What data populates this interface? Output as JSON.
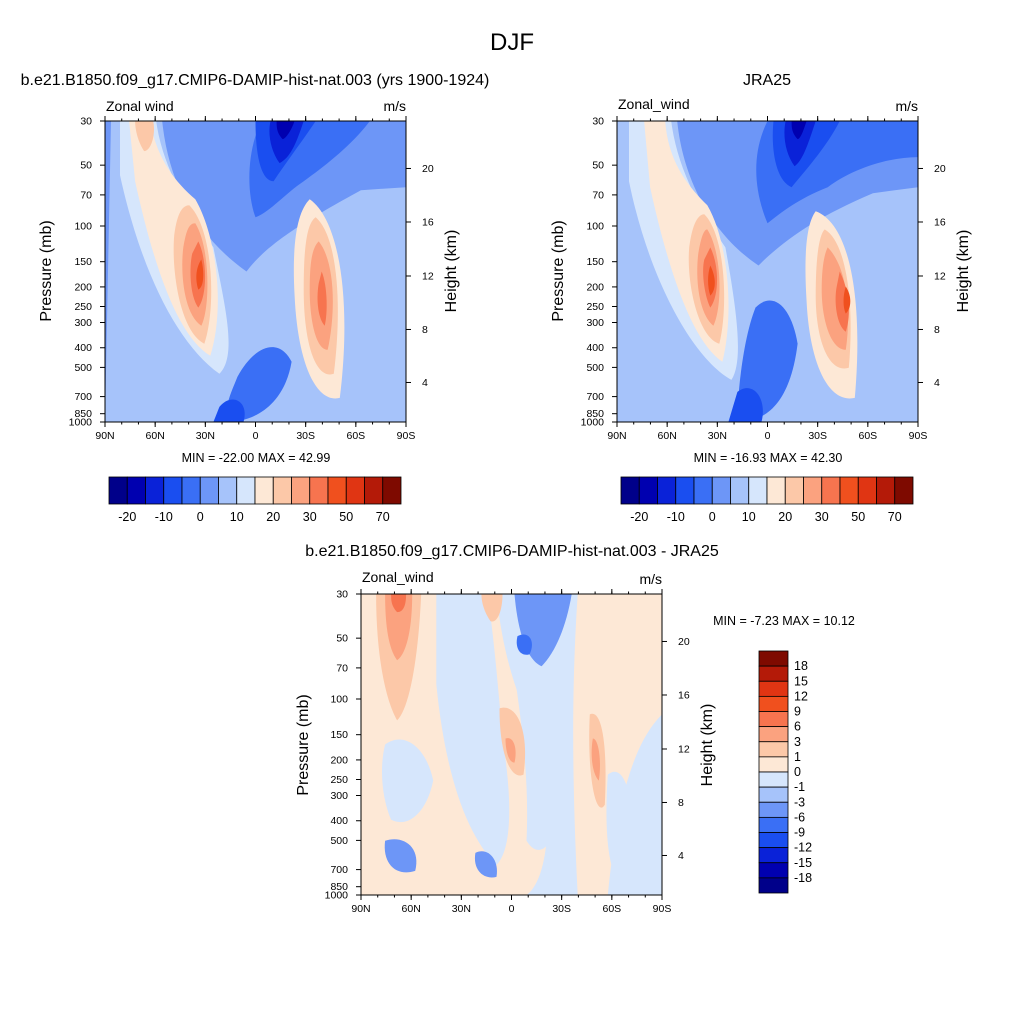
{
  "figure": {
    "title": "DJF"
  },
  "colors": {
    "diverging_ramp": [
      "#00008a",
      "#0000b0",
      "#0a22d8",
      "#1a4ef0",
      "#3a6ff5",
      "#6d96f7",
      "#a6c3fa",
      "#d6e6fc",
      "#fde8d6",
      "#fcc8a8",
      "#fba27f",
      "#f7744f",
      "#f0501e",
      "#e03513",
      "#b41a08",
      "#7e0a00"
    ]
  },
  "chart_data": [
    {
      "type": "heatmap",
      "title": "b.e21.B1850.f09_g17.CMIP6-DAMIP-hist-nat.003 (yrs 1900-1924)",
      "subtitle_left": "Zonal wind",
      "subtitle_right": "m/s",
      "xlabel": "",
      "ylabel": "Pressure (mb)",
      "y2label": "Height (km)",
      "x_ticks": [
        "90N",
        "60N",
        "30N",
        "0",
        "30S",
        "60S",
        "90S"
      ],
      "x_range": [
        90,
        -90
      ],
      "y_ticks": [
        "30",
        "50",
        "70",
        "100",
        "150",
        "200",
        "250",
        "300",
        "400",
        "500",
        "700",
        "850",
        "1000"
      ],
      "y_range_mb": [
        1000,
        30
      ],
      "y_scale": "log",
      "y2_ticks": [
        "4",
        "8",
        "12",
        "16",
        "20"
      ],
      "stats": "MIN = -22.00  MAX =  42.99",
      "min": -22.0,
      "max": 42.99,
      "colorbar": {
        "orientation": "horizontal",
        "levels": [
          -25,
          -20,
          -15,
          -10,
          -5,
          0,
          5,
          10,
          15,
          20,
          25,
          30,
          40,
          50,
          60,
          70
        ],
        "tick_labels": [
          "-20",
          "-10",
          "0",
          "10",
          "20",
          "30",
          "50",
          "70"
        ]
      }
    },
    {
      "type": "heatmap",
      "title": "JRA25",
      "subtitle_left": "Zonal_wind",
      "subtitle_right": "m/s",
      "xlabel": "",
      "ylabel": "Pressure (mb)",
      "y2label": "Height (km)",
      "x_ticks": [
        "90N",
        "60N",
        "30N",
        "0",
        "30S",
        "60S",
        "90S"
      ],
      "x_range": [
        90,
        -90
      ],
      "y_ticks": [
        "30",
        "50",
        "70",
        "100",
        "150",
        "200",
        "250",
        "300",
        "400",
        "500",
        "700",
        "850",
        "1000"
      ],
      "y_range_mb": [
        1000,
        30
      ],
      "y_scale": "log",
      "y2_ticks": [
        "4",
        "8",
        "12",
        "16",
        "20"
      ],
      "stats": "MIN = -16.93  MAX =  42.30",
      "min": -16.93,
      "max": 42.3,
      "colorbar": {
        "orientation": "horizontal",
        "levels": [
          -25,
          -20,
          -15,
          -10,
          -5,
          0,
          5,
          10,
          15,
          20,
          25,
          30,
          40,
          50,
          60,
          70
        ],
        "tick_labels": [
          "-20",
          "-10",
          "0",
          "10",
          "20",
          "30",
          "50",
          "70"
        ]
      }
    },
    {
      "type": "heatmap",
      "title": "b.e21.B1850.f09_g17.CMIP6-DAMIP-hist-nat.003 - JRA25",
      "subtitle_left": "Zonal_wind",
      "subtitle_right": "m/s",
      "xlabel": "",
      "ylabel": "Pressure (mb)",
      "y2label": "Height (km)",
      "x_ticks": [
        "90N",
        "60N",
        "30N",
        "0",
        "30S",
        "60S",
        "90S"
      ],
      "x_range": [
        90,
        -90
      ],
      "y_ticks": [
        "30",
        "50",
        "70",
        "100",
        "150",
        "200",
        "250",
        "300",
        "400",
        "500",
        "700",
        "850",
        "1000"
      ],
      "y_range_mb": [
        1000,
        30
      ],
      "y_scale": "log",
      "y2_ticks": [
        "4",
        "8",
        "12",
        "16",
        "20"
      ],
      "stats": "MIN =  -7.23  MAX =  10.12",
      "min": -7.23,
      "max": 10.12,
      "colorbar": {
        "orientation": "vertical",
        "levels": [
          -18,
          -15,
          -12,
          -9,
          -6,
          -3,
          -1,
          0,
          1,
          3,
          6,
          9,
          12,
          15,
          18
        ],
        "tick_labels": [
          "18",
          "15",
          "12",
          "9",
          "6",
          "3",
          "1",
          "0",
          "-1",
          "-3",
          "-6",
          "-9",
          "-12",
          "-15",
          "-18"
        ]
      }
    }
  ]
}
